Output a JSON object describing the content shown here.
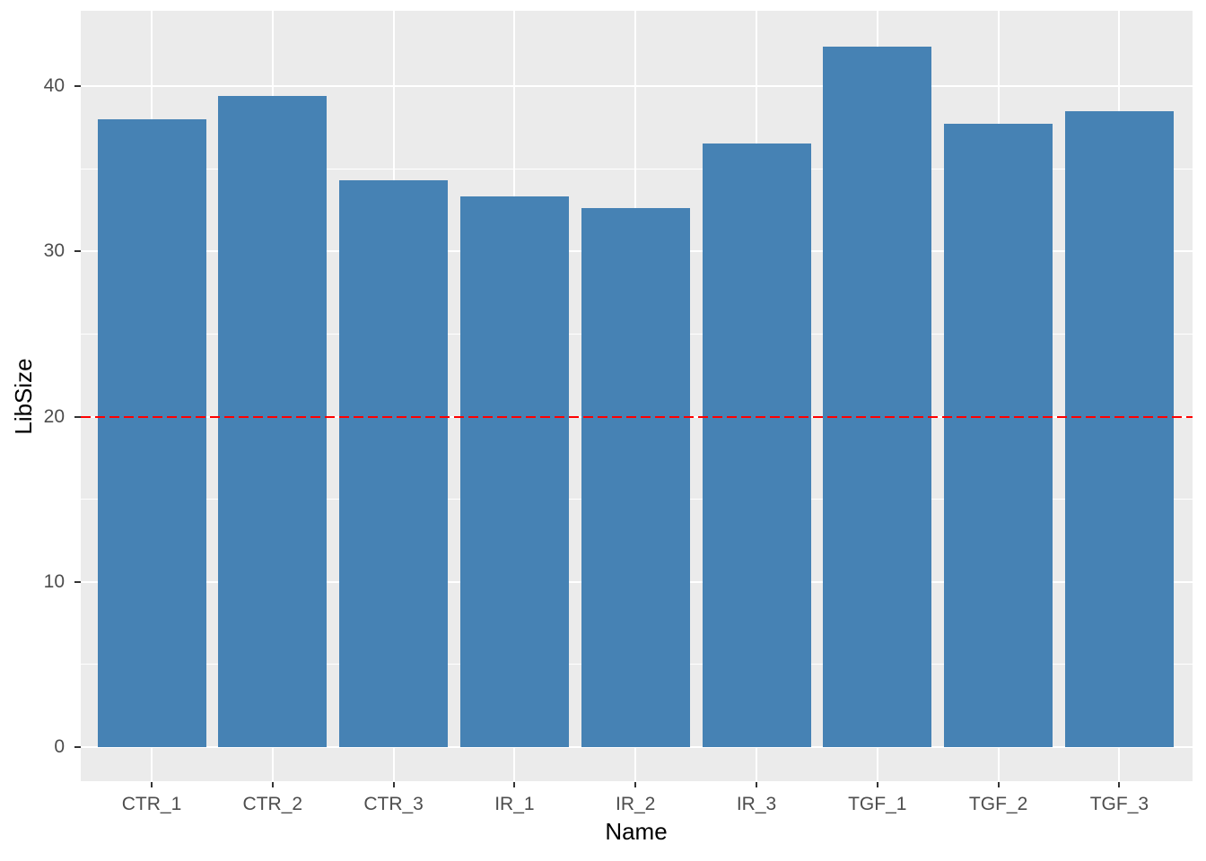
{
  "chart_data": {
    "type": "bar",
    "title": "",
    "xlabel": "Name",
    "ylabel": "LibSize",
    "categories": [
      "CTR_1",
      "CTR_2",
      "CTR_3",
      "IR_1",
      "IR_2",
      "IR_3",
      "TGF_1",
      "TGF_2",
      "TGF_3"
    ],
    "values": [
      38.0,
      39.4,
      34.3,
      33.3,
      32.6,
      36.5,
      42.4,
      37.7,
      38.5
    ],
    "y_ticks": [
      0,
      10,
      20,
      30,
      40
    ],
    "y_minor_ticks": [
      5,
      15,
      25,
      35
    ],
    "ylim": [
      -2.1,
      44.6
    ],
    "reference_line": {
      "y": 20,
      "style": "dashed",
      "color": "#FF0000"
    },
    "legend": "none",
    "grid": true,
    "colors": {
      "bar": "#4682B4",
      "panel_background": "#EBEBEB",
      "gridline": "#FFFFFF",
      "tick_label": "#4D4D4D",
      "axis_tick": "#333333",
      "axis_title": "#000000",
      "outer_background": "#FFFFFF"
    }
  }
}
